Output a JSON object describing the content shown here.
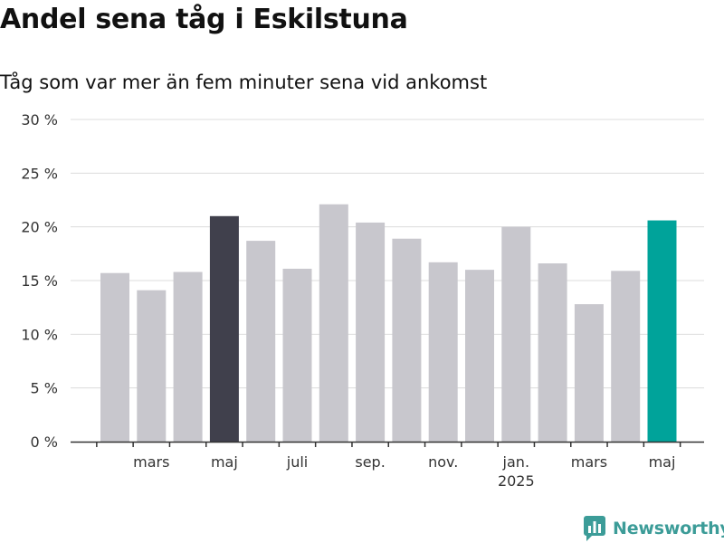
{
  "header": {
    "title": "Andel sena tåg i Eskilstuna",
    "subtitle": "Tåg som var mer än fem minuter sena vid ankomst"
  },
  "chart_data": {
    "type": "bar",
    "title": "Andel sena tåg i Eskilstuna",
    "subtitle": "Tåg som var mer än fem minuter sena vid ankomst",
    "xlabel": "",
    "ylabel": "",
    "ylim": [
      0,
      30
    ],
    "yticks": [
      0,
      5,
      10,
      15,
      20,
      25,
      30
    ],
    "ytick_labels": [
      "0 %",
      "5 %",
      "10 %",
      "15 %",
      "20 %",
      "25 %",
      "30 %"
    ],
    "grid": true,
    "categories": [
      "2024-02",
      "2024-03",
      "2024-04",
      "2024-05",
      "2024-06",
      "2024-07",
      "2024-08",
      "2024-09",
      "2024-10",
      "2024-11",
      "2024-12",
      "2025-01",
      "2025-02",
      "2025-03",
      "2025-04",
      "2025-05"
    ],
    "values": [
      15.7,
      14.1,
      15.8,
      21.0,
      18.7,
      16.1,
      22.1,
      20.4,
      18.9,
      16.7,
      16.0,
      20.0,
      16.6,
      12.8,
      15.9,
      20.6
    ],
    "x_tick_labels": [
      {
        "category": "2024-03",
        "label": "mars",
        "sublabel": ""
      },
      {
        "category": "2024-05",
        "label": "maj",
        "sublabel": ""
      },
      {
        "category": "2024-07",
        "label": "juli",
        "sublabel": ""
      },
      {
        "category": "2024-09",
        "label": "sep.",
        "sublabel": ""
      },
      {
        "category": "2024-11",
        "label": "nov.",
        "sublabel": ""
      },
      {
        "category": "2025-01",
        "label": "jan.",
        "sublabel": "2025"
      },
      {
        "category": "2025-03",
        "label": "mars",
        "sublabel": ""
      },
      {
        "category": "2025-05",
        "label": "maj",
        "sublabel": ""
      }
    ],
    "colors": {
      "default": "#c8c7cd",
      "highlight_dark": "#40404c",
      "highlight_current": "#00a39a"
    },
    "highlights": {
      "2024-05": "highlight_dark",
      "2025-05": "highlight_current"
    }
  },
  "branding": {
    "logo_text": "Newsworthy",
    "logo_icon": "newsworthy-chart-icon",
    "logo_color": "#3c9c98"
  }
}
